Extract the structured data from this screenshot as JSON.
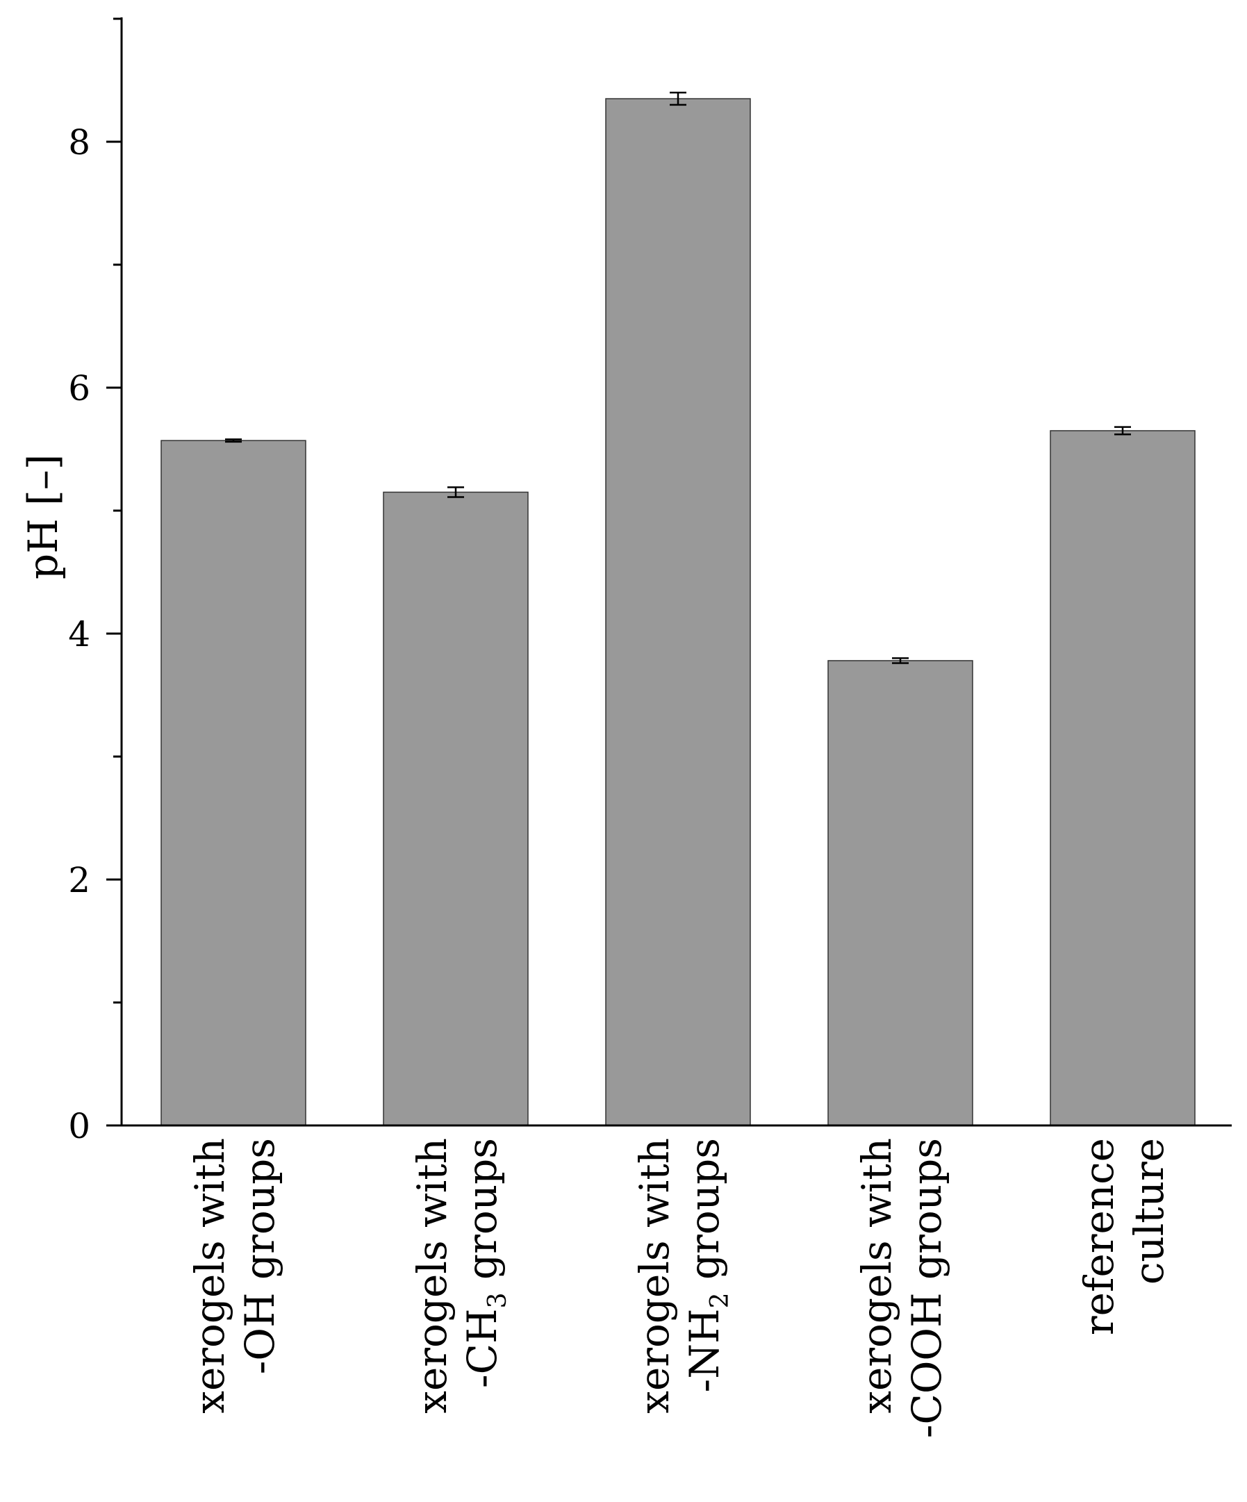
{
  "chart_data": {
    "type": "bar",
    "title": "",
    "xlabel": "",
    "ylabel": "pH [–]",
    "ylim": [
      0,
      9
    ],
    "yticks": [
      0,
      2,
      4,
      6,
      8
    ],
    "y_minor_ticks": [
      1,
      3,
      5,
      7,
      9
    ],
    "grid": false,
    "categories": [
      {
        "line1": "xerogels with",
        "line2_pre": "-OH groups",
        "line2_sub": "",
        "line2_post": ""
      },
      {
        "line1": "xerogels with",
        "line2_pre": "-CH",
        "line2_sub": "3",
        "line2_post": " groups"
      },
      {
        "line1": "xerogels with",
        "line2_pre": "-NH",
        "line2_sub": "2",
        "line2_post": " groups"
      },
      {
        "line1": "xerogels with",
        "line2_pre": "-COOH groups",
        "line2_sub": "",
        "line2_post": ""
      },
      {
        "line1": "reference",
        "line2_pre": "culture",
        "line2_sub": "",
        "line2_post": ""
      }
    ],
    "values": [
      5.57,
      5.15,
      8.35,
      3.78,
      5.65
    ],
    "errors": [
      0.01,
      0.04,
      0.05,
      0.02,
      0.03
    ],
    "bar_color": "#999999",
    "bar_stroke": "#333333",
    "axis_color": "#000000"
  }
}
